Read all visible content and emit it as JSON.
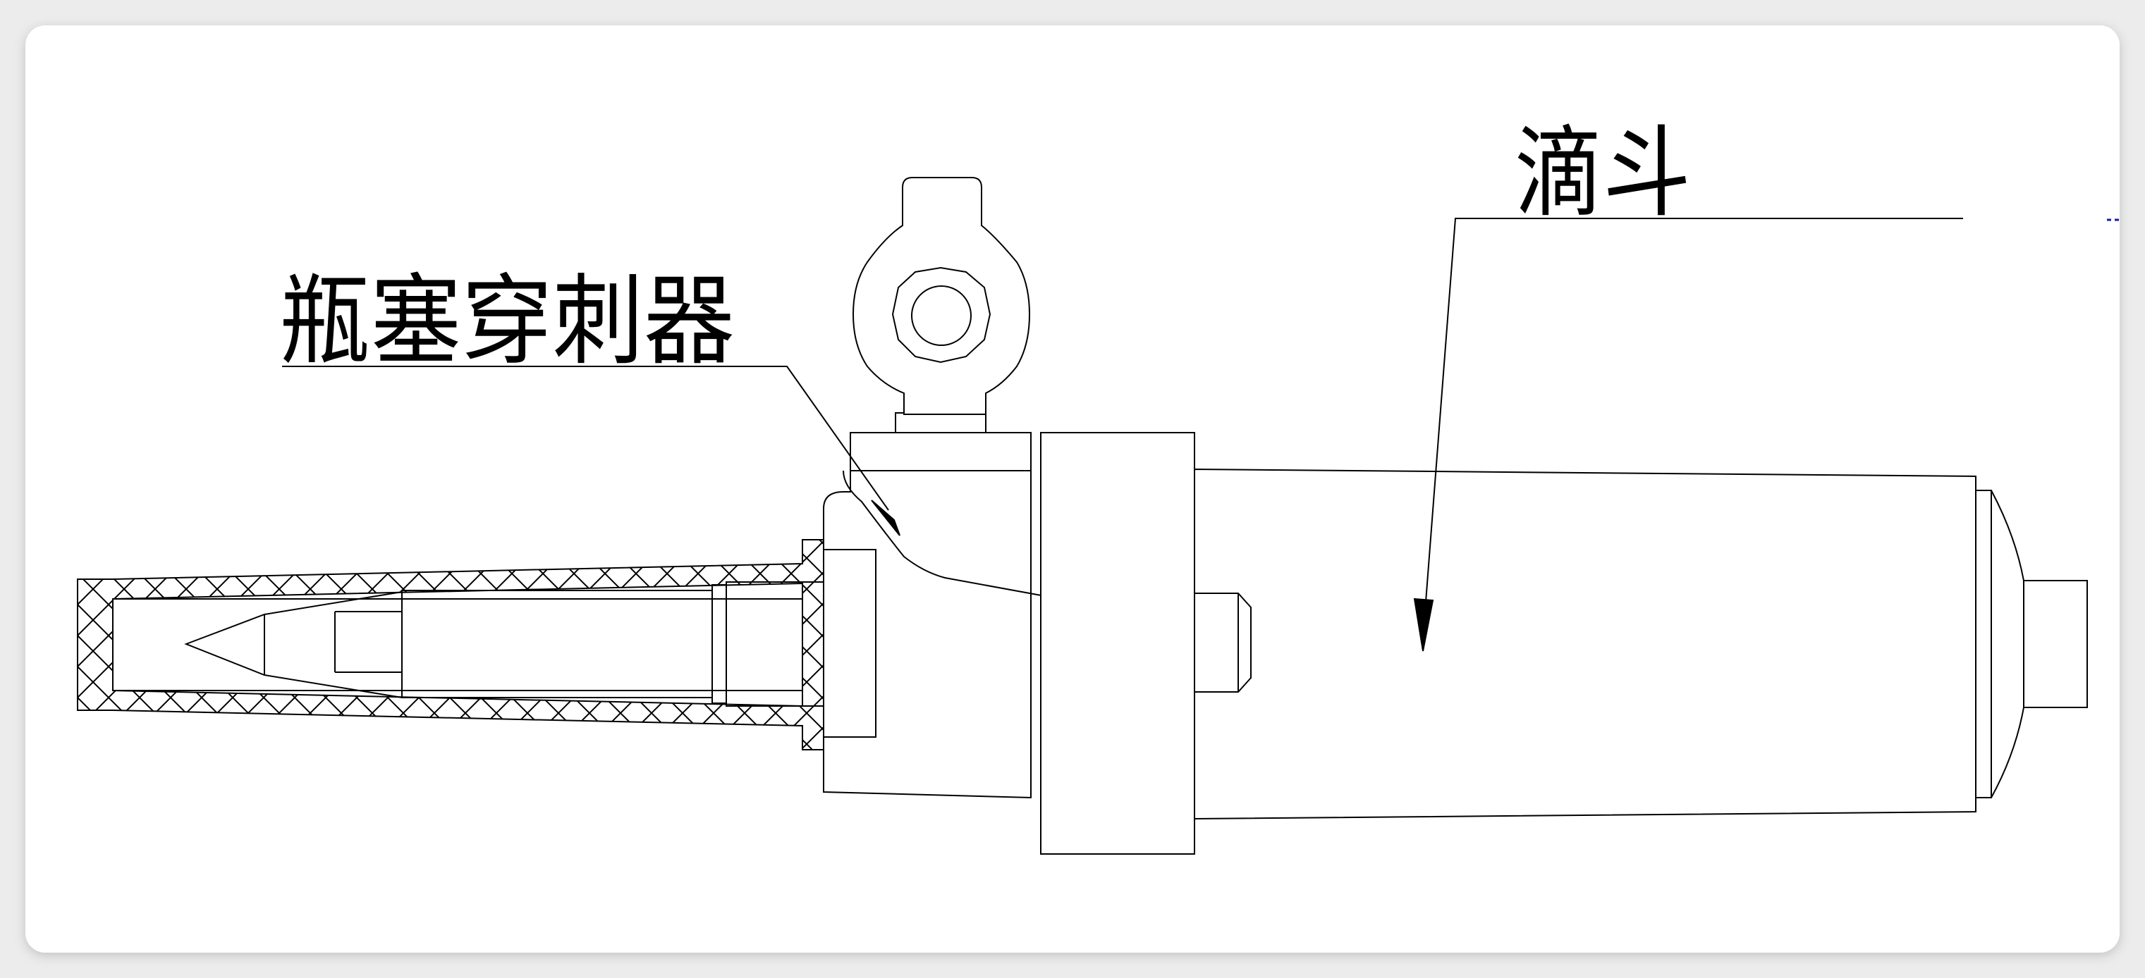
{
  "labels": {
    "stopper_piercer": "瓶塞穿刺器",
    "drip_chamber": "滴斗"
  },
  "colors": {
    "background": "#ececec",
    "card": "#ffffff",
    "line": "#000000",
    "edge_mark": "#1a1aa0"
  }
}
